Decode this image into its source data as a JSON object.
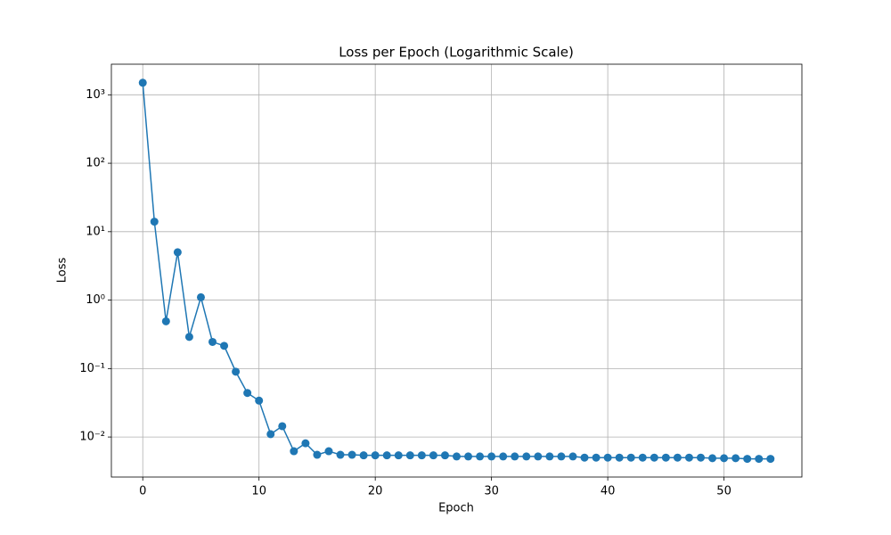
{
  "chart_data": {
    "type": "line",
    "title": "Loss per Epoch (Logarithmic Scale)",
    "x_label": "Epoch",
    "y_label": "Loss",
    "x": [
      0,
      1,
      2,
      3,
      4,
      5,
      6,
      7,
      8,
      9,
      10,
      11,
      12,
      13,
      14,
      15,
      16,
      17,
      18,
      19,
      20,
      21,
      22,
      23,
      24,
      25,
      26,
      27,
      28,
      29,
      30,
      31,
      32,
      33,
      34,
      35,
      36,
      37,
      38,
      39,
      40,
      41,
      42,
      43,
      44,
      45,
      46,
      47,
      48,
      49,
      50,
      51,
      52,
      53,
      54
    ],
    "series": [
      {
        "name": "Loss",
        "color": "#1f77b4",
        "values": [
          1500,
          14,
          0.49,
          5,
          0.29,
          1.1,
          0.245,
          0.215,
          0.09,
          0.044,
          0.034,
          0.011,
          0.0144,
          0.0062,
          0.0081,
          0.0055,
          0.0062,
          0.0055,
          0.0055,
          0.0054,
          0.0054,
          0.0054,
          0.0054,
          0.0054,
          0.0054,
          0.0054,
          0.0054,
          0.0052,
          0.0052,
          0.0052,
          0.0052,
          0.0052,
          0.0052,
          0.0052,
          0.0052,
          0.0052,
          0.0052,
          0.0052,
          0.005,
          0.005,
          0.005,
          0.005,
          0.005,
          0.005,
          0.005,
          0.005,
          0.005,
          0.005,
          0.005,
          0.0049,
          0.0049,
          0.0049,
          0.0048,
          0.0048,
          0.0048
        ]
      }
    ],
    "xlim": [
      -2.7,
      56.7
    ],
    "xticks": [
      0,
      10,
      20,
      30,
      40,
      50
    ],
    "ylim": [
      0.0026,
      2800
    ],
    "y_scale": "log",
    "yticks": [
      {
        "value": 0.01,
        "label": "10⁻²"
      },
      {
        "value": 0.1,
        "label": "10⁻¹"
      },
      {
        "value": 1,
        "label": "10⁰"
      },
      {
        "value": 10,
        "label": "10¹"
      },
      {
        "value": 100,
        "label": "10²"
      },
      {
        "value": 1000,
        "label": "10³"
      }
    ],
    "grid": true
  }
}
